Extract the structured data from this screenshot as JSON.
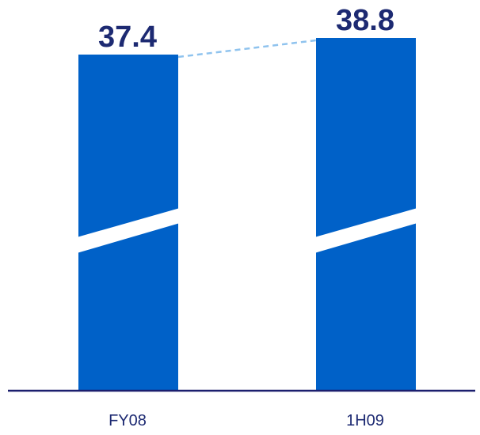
{
  "colors": {
    "bar": "#0061c8",
    "value_text": "#1d2a72",
    "axis": "#1b1f6e",
    "connector": "#8fc3ee",
    "category_text": "#1d2a72",
    "break_gap": "#ffffff"
  },
  "chart_data": {
    "type": "bar",
    "categories": [
      "FY08",
      "1H09"
    ],
    "values": [
      37.4,
      38.8
    ],
    "value_labels": [
      "37.4",
      "38.8"
    ],
    "axis_break": true,
    "connector_line": "dashed",
    "grid": false,
    "legend": "none"
  }
}
